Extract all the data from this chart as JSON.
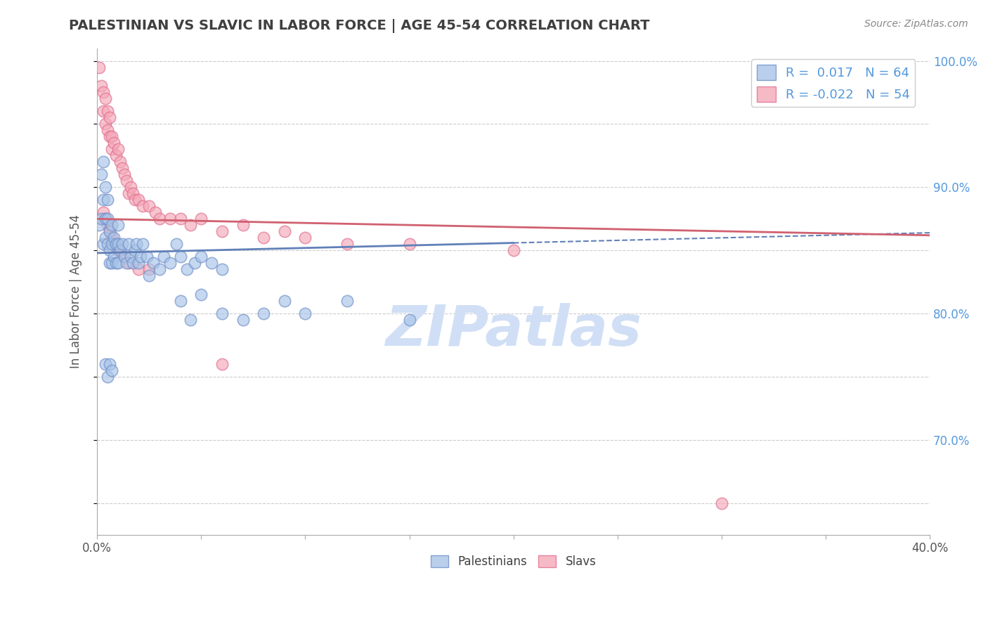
{
  "title": "PALESTINIAN VS SLAVIC IN LABOR FORCE | AGE 45-54 CORRELATION CHART",
  "source": "Source: ZipAtlas.com",
  "ylabel": "In Labor Force | Age 45-54",
  "xlim": [
    0.0,
    0.4
  ],
  "ylim": [
    0.625,
    1.01
  ],
  "xticks": [
    0.0,
    0.05,
    0.1,
    0.15,
    0.2,
    0.25,
    0.3,
    0.35,
    0.4
  ],
  "yticks": [
    0.65,
    0.7,
    0.75,
    0.8,
    0.85,
    0.9,
    0.95,
    1.0
  ],
  "R_blue": 0.017,
  "N_blue": 64,
  "R_pink": -0.022,
  "N_pink": 54,
  "blue_color": "#A8C4E8",
  "pink_color": "#F4A8B8",
  "blue_edge_color": "#7090C8",
  "pink_edge_color": "#E07090",
  "blue_line_color": "#6080B8",
  "pink_line_color": "#D06070",
  "watermark": "ZIPatlas",
  "watermark_color": "#D0DFF5",
  "legend_label_blue": "Palestinians",
  "legend_label_pink": "Slavs",
  "blue_x": [
    0.001,
    0.002,
    0.002,
    0.003,
    0.003,
    0.003,
    0.004,
    0.004,
    0.004,
    0.005,
    0.005,
    0.005,
    0.006,
    0.006,
    0.006,
    0.007,
    0.007,
    0.007,
    0.008,
    0.008,
    0.009,
    0.009,
    0.01,
    0.01,
    0.01,
    0.011,
    0.012,
    0.013,
    0.014,
    0.015,
    0.016,
    0.017,
    0.018,
    0.019,
    0.02,
    0.021,
    0.022,
    0.024,
    0.025,
    0.027,
    0.03,
    0.032,
    0.035,
    0.038,
    0.04,
    0.043,
    0.047,
    0.05,
    0.055,
    0.06,
    0.04,
    0.045,
    0.05,
    0.06,
    0.07,
    0.08,
    0.09,
    0.1,
    0.12,
    0.15,
    0.004,
    0.005,
    0.006,
    0.007
  ],
  "blue_y": [
    0.87,
    0.91,
    0.875,
    0.92,
    0.89,
    0.855,
    0.9,
    0.875,
    0.86,
    0.89,
    0.875,
    0.855,
    0.865,
    0.85,
    0.84,
    0.87,
    0.855,
    0.84,
    0.86,
    0.845,
    0.855,
    0.84,
    0.87,
    0.855,
    0.84,
    0.85,
    0.855,
    0.845,
    0.84,
    0.855,
    0.845,
    0.84,
    0.85,
    0.855,
    0.84,
    0.845,
    0.855,
    0.845,
    0.83,
    0.84,
    0.835,
    0.845,
    0.84,
    0.855,
    0.845,
    0.835,
    0.84,
    0.845,
    0.84,
    0.835,
    0.81,
    0.795,
    0.815,
    0.8,
    0.795,
    0.8,
    0.81,
    0.8,
    0.81,
    0.795,
    0.76,
    0.75,
    0.76,
    0.755
  ],
  "pink_x": [
    0.001,
    0.002,
    0.003,
    0.003,
    0.004,
    0.004,
    0.005,
    0.005,
    0.006,
    0.006,
    0.007,
    0.007,
    0.008,
    0.009,
    0.01,
    0.011,
    0.012,
    0.013,
    0.014,
    0.015,
    0.016,
    0.017,
    0.018,
    0.02,
    0.022,
    0.025,
    0.028,
    0.03,
    0.035,
    0.04,
    0.045,
    0.05,
    0.06,
    0.07,
    0.08,
    0.09,
    0.1,
    0.12,
    0.15,
    0.2,
    0.003,
    0.004,
    0.005,
    0.006,
    0.007,
    0.008,
    0.009,
    0.01,
    0.012,
    0.015,
    0.02,
    0.025,
    0.3,
    0.06
  ],
  "pink_y": [
    0.995,
    0.98,
    0.975,
    0.96,
    0.97,
    0.95,
    0.96,
    0.945,
    0.955,
    0.94,
    0.94,
    0.93,
    0.935,
    0.925,
    0.93,
    0.92,
    0.915,
    0.91,
    0.905,
    0.895,
    0.9,
    0.895,
    0.89,
    0.89,
    0.885,
    0.885,
    0.88,
    0.875,
    0.875,
    0.875,
    0.87,
    0.875,
    0.865,
    0.87,
    0.86,
    0.865,
    0.86,
    0.855,
    0.855,
    0.85,
    0.88,
    0.875,
    0.87,
    0.865,
    0.86,
    0.855,
    0.855,
    0.85,
    0.845,
    0.84,
    0.835,
    0.835,
    0.65,
    0.76
  ],
  "blue_trend_x": [
    0.0,
    0.2
  ],
  "blue_trend_y": [
    0.848,
    0.856
  ],
  "pink_trend_x": [
    0.0,
    0.4
  ],
  "pink_trend_y": [
    0.875,
    0.862
  ]
}
